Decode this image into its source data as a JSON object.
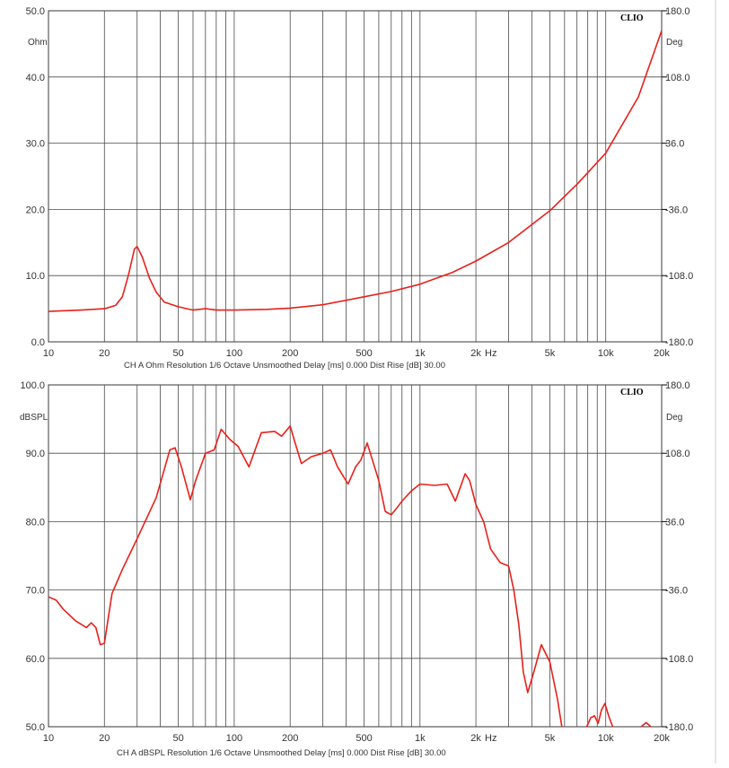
{
  "chart_data": [
    {
      "type": "line",
      "brand": "CLIO",
      "xscale": "log",
      "xlim": [
        10,
        20000
      ],
      "ylim": [
        0,
        50
      ],
      "y2lim": [
        -180,
        180
      ],
      "ylabel": "Ohm",
      "y2label": "Deg",
      "xunit": "Hz",
      "grid": true,
      "x_ticks": [
        "10",
        "20",
        "50",
        "100",
        "200",
        "500",
        "1k",
        "2k",
        "5k",
        "10k",
        "20k"
      ],
      "y_ticks": [
        "0.0",
        "10.0",
        "20.0",
        "30.0",
        "40.0",
        "50.0"
      ],
      "y2_ticks": [
        "-180.0",
        "-108.0",
        "-36.0",
        "36.0",
        "108.0",
        "180.0"
      ],
      "caption": "CH A   Ohm   Resolution 1/6 Octave   Unsmoothed   Delay [ms] 0.000   Dist Rise [dB] 30.00",
      "line_color": "#e8201a",
      "series": [
        {
          "x": [
            10,
            15,
            20,
            23,
            25,
            27,
            29,
            30,
            32,
            35,
            38,
            42,
            50,
            60,
            70,
            80,
            100,
            150,
            200,
            300,
            500,
            700,
            1000,
            1500,
            2000,
            3000,
            5000,
            7000,
            10000,
            15000,
            20000
          ],
          "y": [
            4.6,
            4.8,
            5.0,
            5.5,
            6.8,
            10.2,
            14.0,
            14.4,
            12.8,
            9.6,
            7.5,
            6.0,
            5.3,
            4.8,
            5.0,
            4.8,
            4.8,
            4.9,
            5.1,
            5.6,
            6.8,
            7.6,
            8.7,
            10.5,
            12.2,
            15.0,
            19.8,
            23.8,
            28.5,
            37.0,
            47.0
          ]
        }
      ]
    },
    {
      "type": "line",
      "brand": "CLIO",
      "xscale": "log",
      "xlim": [
        10,
        20000
      ],
      "ylim": [
        50,
        100
      ],
      "y2lim": [
        -180,
        180
      ],
      "ylabel": "dBSPL",
      "y2label": "Deg",
      "xunit": "Hz",
      "grid": true,
      "x_ticks": [
        "10",
        "20",
        "50",
        "100",
        "200",
        "500",
        "1k",
        "2k",
        "5k",
        "10k",
        "20k"
      ],
      "y_ticks": [
        "50.0",
        "60.0",
        "70.0",
        "80.0",
        "90.0",
        "100.0"
      ],
      "y2_ticks": [
        "-180.0",
        "-108.0",
        "-36.0",
        "36.0",
        "108.0",
        "180.0"
      ],
      "caption": "CH A   dBSPL   Resolution 1/6 Octave   Unsmoothed   Delay [ms] 0.000   Dist Rise [dB] 30.00",
      "line_color": "#e8201a",
      "series": [
        {
          "segments": [
            {
              "x": [
                10,
                11,
                12,
                14,
                16,
                17,
                18,
                19,
                20,
                21,
                22,
                25,
                30,
                38,
                45,
                48,
                52,
                58,
                62,
                70,
                78,
                85,
                95,
                105,
                120,
                140,
                165,
                180,
                200,
                210,
                230,
                260,
                300,
                330,
                360,
                410,
                450,
                480,
                520,
                600,
                650,
                700,
                750,
                800,
                900,
                1000,
                1200,
                1400,
                1550,
                1750,
                1850,
                2000,
                2200,
                2400,
                2700,
                3000,
                3200,
                3400,
                3600,
                3800,
                4100,
                4500,
                5000,
                5500,
                5800
              ],
              "y": [
                69.0,
                68.5,
                67.2,
                65.5,
                64.5,
                65.2,
                64.5,
                62.0,
                62.2,
                66.0,
                69.5,
                73.0,
                77.5,
                83.5,
                90.5,
                90.8,
                88.0,
                83.2,
                86.0,
                90.0,
                90.5,
                93.5,
                92.0,
                91.0,
                88.0,
                93.0,
                93.2,
                92.5,
                94.0,
                92.0,
                88.5,
                89.5,
                90.0,
                90.5,
                88.0,
                85.5,
                88.0,
                89.0,
                91.5,
                86.0,
                81.5,
                81.0,
                82.0,
                83.0,
                84.5,
                85.5,
                85.3,
                85.5,
                83.0,
                87.0,
                86.0,
                82.5,
                80.0,
                76.0,
                74.0,
                73.5,
                70.0,
                65.0,
                58.0,
                55.0,
                58.0,
                62.0,
                59.5,
                54.0,
                50.0
              ]
            },
            {
              "x": [
                7900,
                8300,
                8700,
                9100,
                9500,
                9900,
                10400,
                10900
              ],
              "y": [
                50.0,
                51.3,
                51.6,
                50.5,
                52.5,
                53.4,
                51.5,
                50.0
              ]
            },
            {
              "x": [
                15500,
                16500,
                17500
              ],
              "y": [
                50.0,
                50.6,
                50.0
              ]
            }
          ]
        }
      ]
    }
  ]
}
